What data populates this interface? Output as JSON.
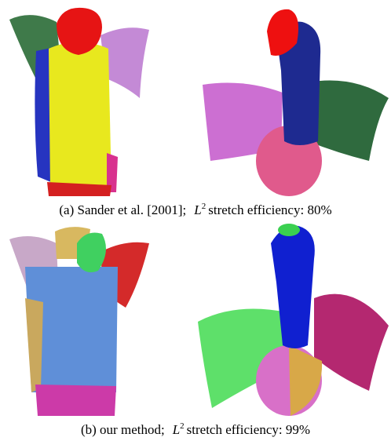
{
  "figure": {
    "captions": [
      {
        "prefix": "(a) Sander et al. [2001];",
        "symbol": "L",
        "superscript": "2",
        "suffix": "stretch efficiency: 80%"
      },
      {
        "prefix": "(b) our method;",
        "symbol": "L",
        "superscript": "2",
        "suffix": "stretch efficiency: 99%"
      }
    ]
  }
}
